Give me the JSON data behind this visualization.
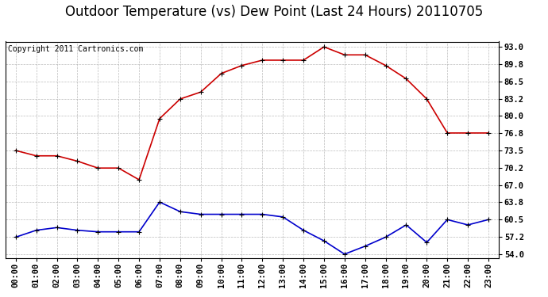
{
  "title": "Outdoor Temperature (vs) Dew Point (Last 24 Hours) 20110705",
  "copyright": "Copyright 2011 Cartronics.com",
  "hours": [
    "00:00",
    "01:00",
    "02:00",
    "03:00",
    "04:00",
    "05:00",
    "06:00",
    "07:00",
    "08:00",
    "09:00",
    "10:00",
    "11:00",
    "12:00",
    "13:00",
    "14:00",
    "15:00",
    "16:00",
    "17:00",
    "18:00",
    "19:00",
    "20:00",
    "21:00",
    "22:00",
    "23:00"
  ],
  "temp": [
    73.5,
    72.5,
    72.5,
    71.5,
    70.2,
    70.2,
    68.0,
    79.5,
    83.2,
    84.5,
    88.0,
    89.5,
    90.5,
    90.5,
    90.5,
    93.0,
    91.5,
    91.5,
    89.5,
    87.0,
    83.2,
    76.8,
    76.8,
    76.8
  ],
  "dew": [
    57.2,
    58.5,
    59.0,
    58.5,
    58.2,
    58.2,
    58.2,
    63.8,
    62.0,
    61.5,
    61.5,
    61.5,
    61.5,
    61.0,
    58.5,
    56.5,
    54.0,
    55.5,
    57.2,
    59.5,
    56.2,
    60.5,
    59.5,
    60.5
  ],
  "temp_color": "#cc0000",
  "dew_color": "#0000cc",
  "marker": "+",
  "markersize": 5,
  "linewidth": 1.2,
  "background_color": "#ffffff",
  "plot_bg": "#ffffff",
  "grid_color": "#aaaaaa",
  "yticks": [
    54.0,
    57.2,
    60.5,
    63.8,
    67.0,
    70.2,
    73.5,
    76.8,
    80.0,
    83.2,
    86.5,
    89.8,
    93.0
  ],
  "ylim": [
    53.2,
    94.0
  ],
  "title_fontsize": 12,
  "copyright_fontsize": 7,
  "tick_fontsize": 7.5
}
